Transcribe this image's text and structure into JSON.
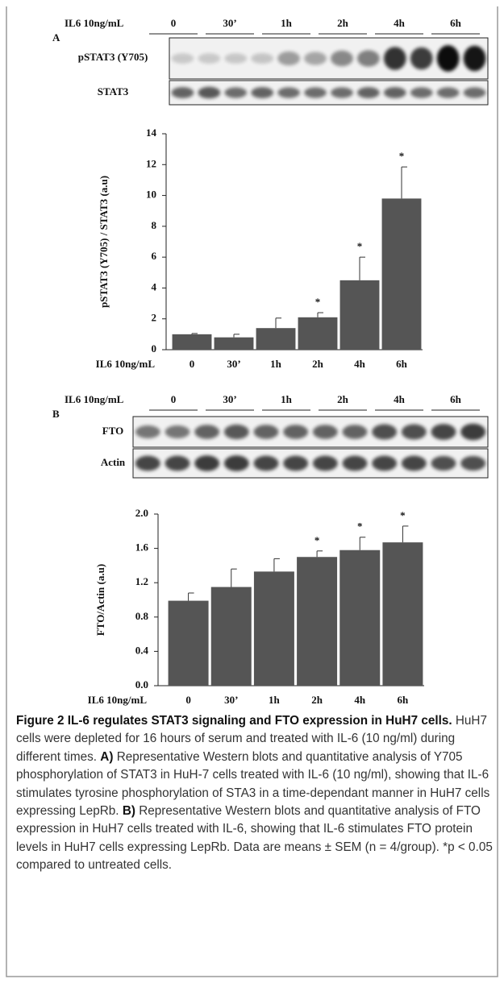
{
  "panels": [
    {
      "label": "A",
      "header": "IL6 10ng/mL",
      "lanes": [
        "0",
        "30’",
        "1h",
        "2h",
        "4h",
        "6h"
      ],
      "blots": [
        "pSTAT3 (Y705)",
        "STAT3"
      ]
    },
    {
      "label": "B",
      "header": "IL6 10ng/mL",
      "lanes": [
        "0",
        "30’",
        "1h",
        "2h",
        "4h",
        "6h"
      ],
      "blots": [
        "FTO",
        "Actin"
      ]
    }
  ],
  "chart_data": [
    {
      "type": "bar",
      "y_label": "pSTAT3 (Y705) / STAT3 (a.u)",
      "x_label": "IL6 10ng/mL",
      "categories": [
        "0",
        "30’",
        "1h",
        "2h",
        "4h",
        "6h"
      ],
      "values": [
        1.0,
        0.8,
        1.4,
        2.1,
        4.5,
        9.8
      ],
      "errors": [
        0.05,
        0.2,
        0.65,
        0.3,
        1.5,
        2.05
      ],
      "significance": [
        null,
        null,
        null,
        "*",
        "*",
        "*"
      ],
      "color": "#555555",
      "ylim": [
        0,
        14
      ],
      "yticks": [
        0,
        2,
        4,
        6,
        8,
        10,
        12,
        14
      ]
    },
    {
      "type": "bar",
      "y_label": "FTO/Actin (a.u)",
      "x_label": "IL6 10ng/mL",
      "categories": [
        "0",
        "30’",
        "1h",
        "2h",
        "4h",
        "6h"
      ],
      "values": [
        0.99,
        1.15,
        1.33,
        1.5,
        1.58,
        1.67
      ],
      "errors": [
        0.09,
        0.21,
        0.15,
        0.07,
        0.15,
        0.19
      ],
      "significance": [
        null,
        null,
        null,
        "*",
        "*",
        "*"
      ],
      "color": "#555555",
      "ylim": [
        0,
        2
      ],
      "yticks": [
        {
          "value": 0,
          "label": "0.0"
        },
        0.4,
        0.8,
        1.2,
        1.6,
        {
          "value": 2,
          "label": "2.0"
        }
      ]
    }
  ],
  "caption": {
    "title": "Figure 2 IL-6 regulates STAT3 signaling and FTO expression in HuH7 cells.",
    "body": [
      "HuH7 cells were depleted for 16 hours of serum and treated with IL-6 (10 ng/ml) during different times.",
      "A)",
      "Representative Western blots and quantitative analysis of Y705 phosphorylation of STAT3 in HuH-7 cells treated with IL-6 (10 ng/ml), showing that IL-6 stimulates tyrosine phosphorylation of STA3 in a time-dependant manner in HuH7 cells expressing LepRb.",
      "B)",
      "Representative Western blots and quantitative analysis of FTO expression in HuH7 cells treated with IL-6, showing that IL-6 stimulates FTO protein levels in HuH7 cells expressing LepRb. Data are means ± SEM (n = 4/group). *p < 0.05 compared to untreated cells."
    ]
  }
}
